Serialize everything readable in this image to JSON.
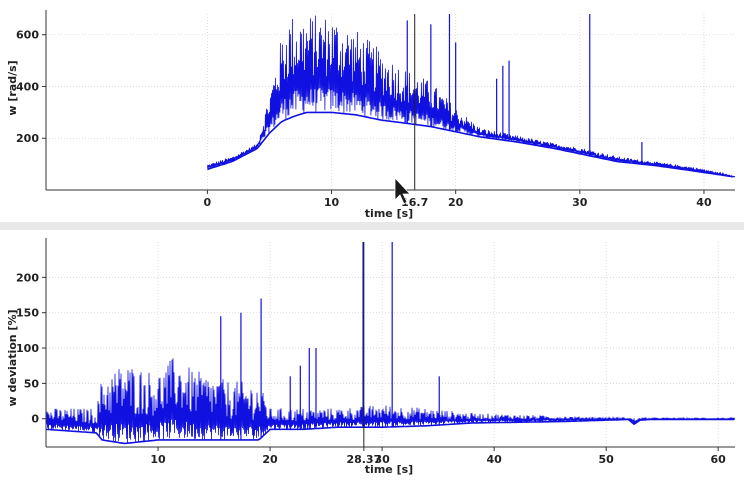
{
  "chart_data": [
    {
      "type": "line",
      "xlabel": "time [s]",
      "ylabel": "w [rad/s]",
      "xlim": [
        -13,
        42.5
      ],
      "ylim": [
        0,
        680
      ],
      "xticks": [
        "0",
        "10",
        "20",
        "30",
        "40"
      ],
      "xtick_values": [
        0,
        10,
        20,
        30,
        40
      ],
      "yticks": [
        "200",
        "400",
        "600"
      ],
      "ytick_values": [
        200,
        400,
        600
      ],
      "marker_label": "16.7",
      "marker_x": 16.7,
      "grid": true,
      "series": [
        {
          "color": "#1010e0",
          "lower_envelope": [
            [
              0,
              80
            ],
            [
              2,
              110
            ],
            [
              4,
              160
            ],
            [
              5,
              220
            ],
            [
              6,
              265
            ],
            [
              7,
              285
            ],
            [
              8,
              300
            ],
            [
              10,
              300
            ],
            [
              12,
              290
            ],
            [
              14,
              270
            ],
            [
              16,
              258
            ],
            [
              18,
              245
            ],
            [
              20,
              225
            ],
            [
              22,
              205
            ],
            [
              25,
              185
            ],
            [
              28,
              160
            ],
            [
              30,
              140
            ],
            [
              33,
              110
            ],
            [
              36,
              95
            ],
            [
              39,
              75
            ],
            [
              42.5,
              50
            ]
          ],
          "upper_envelope": [
            [
              0,
              100
            ],
            [
              2,
              130
            ],
            [
              4,
              180
            ],
            [
              5,
              380
            ],
            [
              6,
              600
            ],
            [
              6.5,
              680
            ],
            [
              10,
              680
            ],
            [
              12,
              620
            ],
            [
              14,
              540
            ],
            [
              16,
              470
            ],
            [
              18,
              420
            ],
            [
              20,
              320
            ],
            [
              22,
              240
            ],
            [
              25,
              210
            ],
            [
              28,
              180
            ],
            [
              30,
              165
            ],
            [
              33,
              130
            ],
            [
              36,
              110
            ],
            [
              39,
              90
            ],
            [
              42.5,
              55
            ]
          ],
          "spikes": [
            [
              16.1,
              655
            ],
            [
              18.0,
              640
            ],
            [
              19.5,
              680
            ],
            [
              20.0,
              570
            ],
            [
              22.2,
              205
            ],
            [
              23.3,
              430
            ],
            [
              23.8,
              480
            ],
            [
              24.3,
              500
            ],
            [
              30.8,
              680
            ],
            [
              35.0,
              185
            ]
          ]
        }
      ]
    },
    {
      "type": "line",
      "xlabel": "time [s]",
      "ylabel": "w deviation [%]",
      "xlim": [
        0,
        61.5
      ],
      "ylim": [
        -40,
        250
      ],
      "xticks": [
        "10",
        "20",
        "28.37",
        "30",
        "40",
        "50",
        "60"
      ],
      "xtick_values": [
        10,
        20,
        28.37,
        30,
        40,
        50,
        60
      ],
      "yticks": [
        "0",
        "50",
        "100",
        "150",
        "200"
      ],
      "ytick_values": [
        0,
        50,
        100,
        150,
        200
      ],
      "marker_label": "28.37",
      "marker_x": 28.37,
      "grid": true,
      "series": [
        {
          "color": "#1010e0",
          "lower_envelope": [
            [
              0,
              -15
            ],
            [
              4.5,
              -20
            ],
            [
              5,
              -30
            ],
            [
              7,
              -35
            ],
            [
              10,
              -30
            ],
            [
              13,
              -30
            ],
            [
              16,
              -30
            ],
            [
              19,
              -30
            ],
            [
              20,
              -15
            ],
            [
              23,
              -15
            ],
            [
              26,
              -12
            ],
            [
              30,
              -12
            ],
            [
              34,
              -10
            ],
            [
              38,
              -6
            ],
            [
              42,
              -5
            ],
            [
              46,
              -4
            ],
            [
              50,
              -2
            ],
            [
              52,
              -1
            ],
            [
              52.5,
              -8
            ],
            [
              53,
              -2
            ],
            [
              54,
              -1
            ],
            [
              61.5,
              -1
            ]
          ],
          "upper_envelope": [
            [
              0,
              15
            ],
            [
              4.5,
              15
            ],
            [
              5,
              60
            ],
            [
              7,
              80
            ],
            [
              10,
              65
            ],
            [
              11.5,
              90
            ],
            [
              13,
              70
            ],
            [
              16,
              55
            ],
            [
              19,
              50
            ],
            [
              20,
              15
            ],
            [
              23,
              15
            ],
            [
              26,
              15
            ],
            [
              30,
              20
            ],
            [
              34,
              15
            ],
            [
              38,
              8
            ],
            [
              42,
              6
            ],
            [
              46,
              4
            ],
            [
              50,
              2
            ],
            [
              52,
              1
            ],
            [
              54,
              1
            ],
            [
              61.5,
              1
            ]
          ],
          "spikes": [
            [
              15.6,
              145
            ],
            [
              17.4,
              150
            ],
            [
              19.2,
              170
            ],
            [
              21.8,
              60
            ],
            [
              22.7,
              75
            ],
            [
              23.5,
              100
            ],
            [
              24.1,
              100
            ],
            [
              28.3,
              250
            ],
            [
              30.9,
              250
            ],
            [
              35.1,
              60
            ]
          ]
        }
      ]
    }
  ]
}
